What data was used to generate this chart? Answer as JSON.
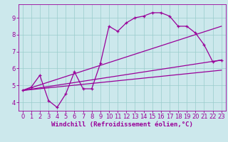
{
  "xlabel": "Windchill (Refroidissement éolien,°C)",
  "bg_color": "#cce8ec",
  "line_color": "#990099",
  "xlim": [
    -0.5,
    23.5
  ],
  "ylim": [
    3.5,
    9.8
  ],
  "xticks": [
    0,
    1,
    2,
    3,
    4,
    5,
    6,
    7,
    8,
    9,
    10,
    11,
    12,
    13,
    14,
    15,
    16,
    17,
    18,
    19,
    20,
    21,
    22,
    23
  ],
  "yticks": [
    4,
    5,
    6,
    7,
    8,
    9
  ],
  "line1_x": [
    0,
    1,
    2,
    3,
    4,
    5,
    6,
    7,
    8,
    9,
    10,
    11,
    12,
    13,
    14,
    15,
    16,
    17,
    18,
    19,
    20,
    21,
    22,
    23
  ],
  "line1_y": [
    4.7,
    4.9,
    5.6,
    4.1,
    3.7,
    4.5,
    5.8,
    4.8,
    4.8,
    6.3,
    8.5,
    8.2,
    8.7,
    9.0,
    9.1,
    9.3,
    9.3,
    9.1,
    8.5,
    8.5,
    8.1,
    7.4,
    6.4,
    6.5
  ],
  "upper_line_x": [
    0,
    23
  ],
  "upper_line_y": [
    4.7,
    8.5
  ],
  "lower_line_x": [
    0,
    23
  ],
  "lower_line_y": [
    4.7,
    5.9
  ],
  "mid_line_x": [
    0,
    23
  ],
  "mid_line_y": [
    4.7,
    6.5
  ],
  "grid_color": "#99cccc",
  "tick_fontsize": 6,
  "xlabel_fontsize": 6.5
}
